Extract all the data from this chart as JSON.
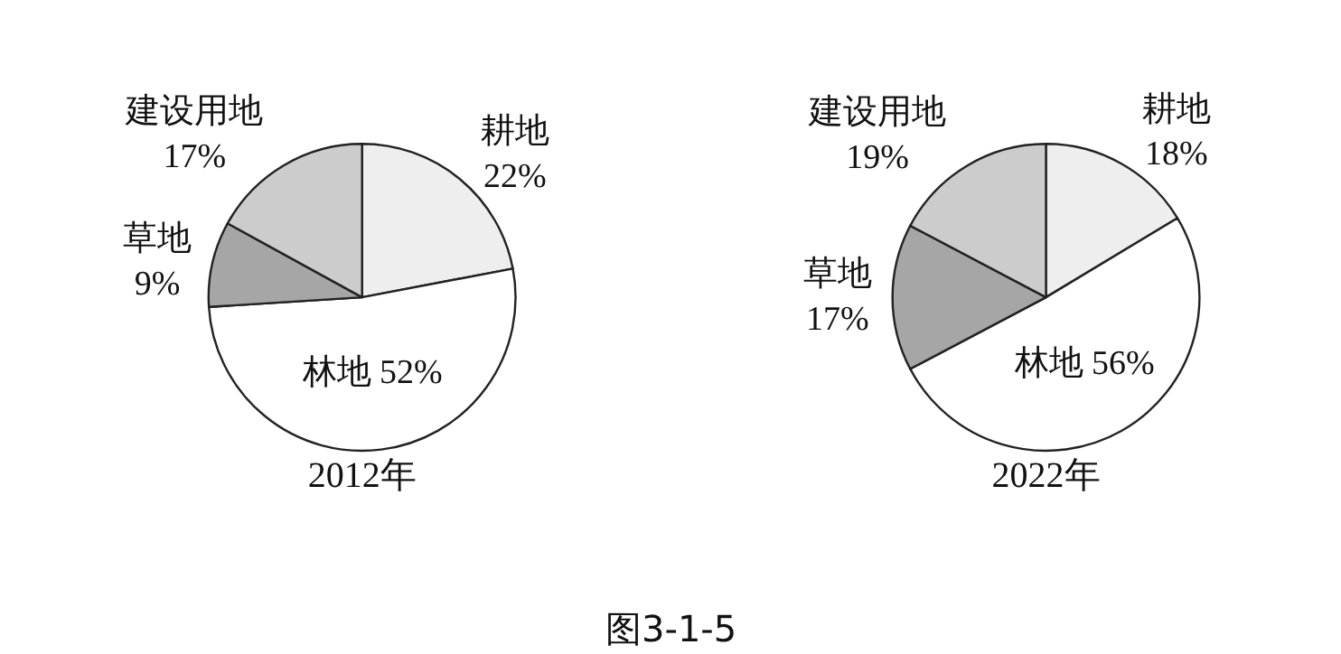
{
  "chart_data": [
    {
      "type": "pie",
      "title": "2012年",
      "categories": [
        "耕地",
        "林地",
        "草地",
        "建设用地"
      ],
      "values": [
        22,
        52,
        9,
        17
      ],
      "colors": [
        "#eeeeee",
        "#ffffff",
        "#a6a6a6",
        "#cccccc"
      ],
      "value_labels": [
        "22%",
        "52%",
        "9%",
        "17%"
      ]
    },
    {
      "type": "pie",
      "title": "2022年",
      "categories": [
        "耕地",
        "林地",
        "草地",
        "建设用地"
      ],
      "values": [
        18,
        56,
        17,
        19
      ],
      "colors": [
        "#eeeeee",
        "#ffffff",
        "#a6a6a6",
        "#cccccc"
      ],
      "value_labels": [
        "18%",
        "56%",
        "17%",
        "19%"
      ],
      "annotations": [
        "图3-1-5"
      ]
    }
  ]
}
